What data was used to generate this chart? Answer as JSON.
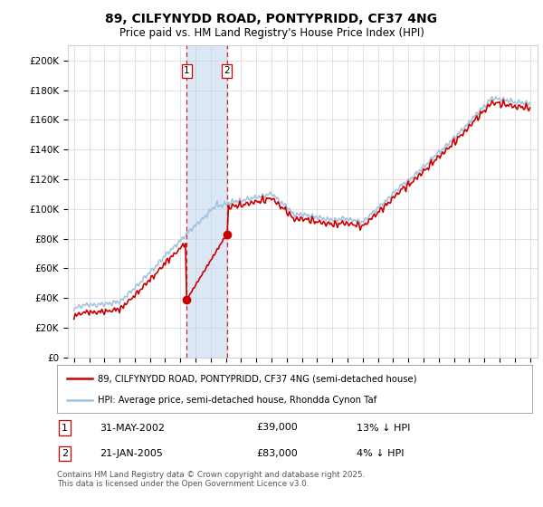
{
  "title": "89, CILFYNYDD ROAD, PONTYPRIDD, CF37 4NG",
  "subtitle": "Price paid vs. HM Land Registry's House Price Index (HPI)",
  "ylim": [
    0,
    210000
  ],
  "yticks": [
    0,
    20000,
    40000,
    60000,
    80000,
    100000,
    120000,
    140000,
    160000,
    180000,
    200000
  ],
  "ytick_labels": [
    "£0",
    "£20K",
    "£40K",
    "£60K",
    "£80K",
    "£100K",
    "£120K",
    "£140K",
    "£160K",
    "£180K",
    "£200K"
  ],
  "hpi_color": "#a0c0e0",
  "price_color": "#cc0000",
  "span_color": "#dae8f5",
  "transaction1_date": 2002.42,
  "transaction1_price": 39000,
  "transaction2_date": 2005.05,
  "transaction2_price": 83000,
  "sale_date1": "31-MAY-2002",
  "sale_price1": "£39,000",
  "sale_change1": "13% ↓ HPI",
  "sale_date2": "21-JAN-2005",
  "sale_price2": "£83,000",
  "sale_change2": "4% ↓ HPI",
  "legend_line1": "89, CILFYNYDD ROAD, PONTYPRIDD, CF37 4NG (semi-detached house)",
  "legend_line2": "HPI: Average price, semi-detached house, Rhondda Cynon Taf",
  "footer": "Contains HM Land Registry data © Crown copyright and database right 2025.\nThis data is licensed under the Open Government Licence v3.0.",
  "bg_color": "#ffffff",
  "grid_color": "#cccccc"
}
